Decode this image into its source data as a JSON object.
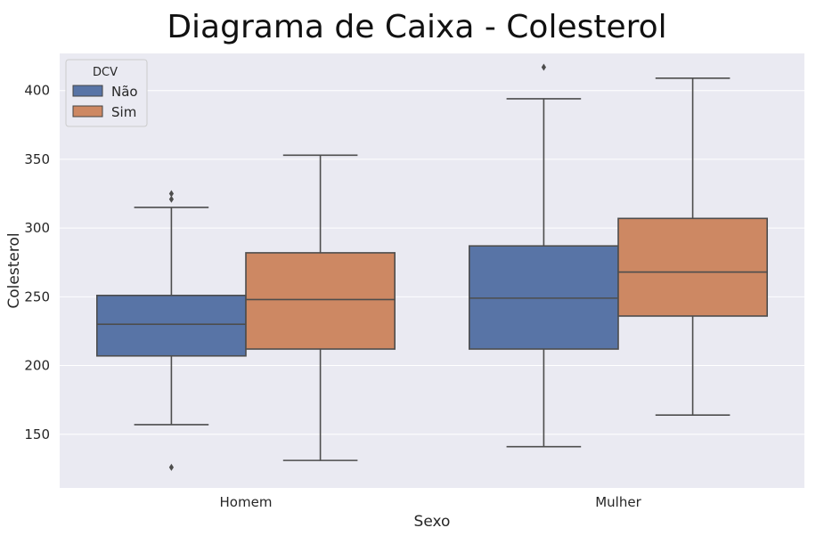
{
  "chart_data": {
    "type": "boxplot",
    "title": "Diagrama de Caixa - Colesterol",
    "xlabel": "Sexo",
    "ylabel": "Colesterol",
    "categories": [
      "Homem",
      "Mulher"
    ],
    "ylim": [
      111,
      427
    ],
    "yticks": [
      150,
      200,
      250,
      300,
      350,
      400
    ],
    "grid": true,
    "legend": {
      "title": "DCV",
      "position": "top-left"
    },
    "series": [
      {
        "name": "Não",
        "color": "#5874a6",
        "boxes": [
          {
            "category": "Homem",
            "whisker_low": 157,
            "q1": 207,
            "median": 230,
            "q3": 251,
            "whisker_high": 315,
            "outliers": [
              126,
              321,
              325
            ]
          },
          {
            "category": "Mulher",
            "whisker_low": 141,
            "q1": 212,
            "median": 249,
            "q3": 287,
            "whisker_high": 394,
            "outliers": [
              417
            ]
          }
        ]
      },
      {
        "name": "Sim",
        "color": "#cd8863",
        "boxes": [
          {
            "category": "Homem",
            "whisker_low": 131,
            "q1": 212,
            "median": 248,
            "q3": 282,
            "whisker_high": 353,
            "outliers": []
          },
          {
            "category": "Mulher",
            "whisker_low": 164,
            "q1": 236,
            "median": 268,
            "q3": 307,
            "whisker_high": 409,
            "outliers": []
          }
        ]
      }
    ]
  }
}
